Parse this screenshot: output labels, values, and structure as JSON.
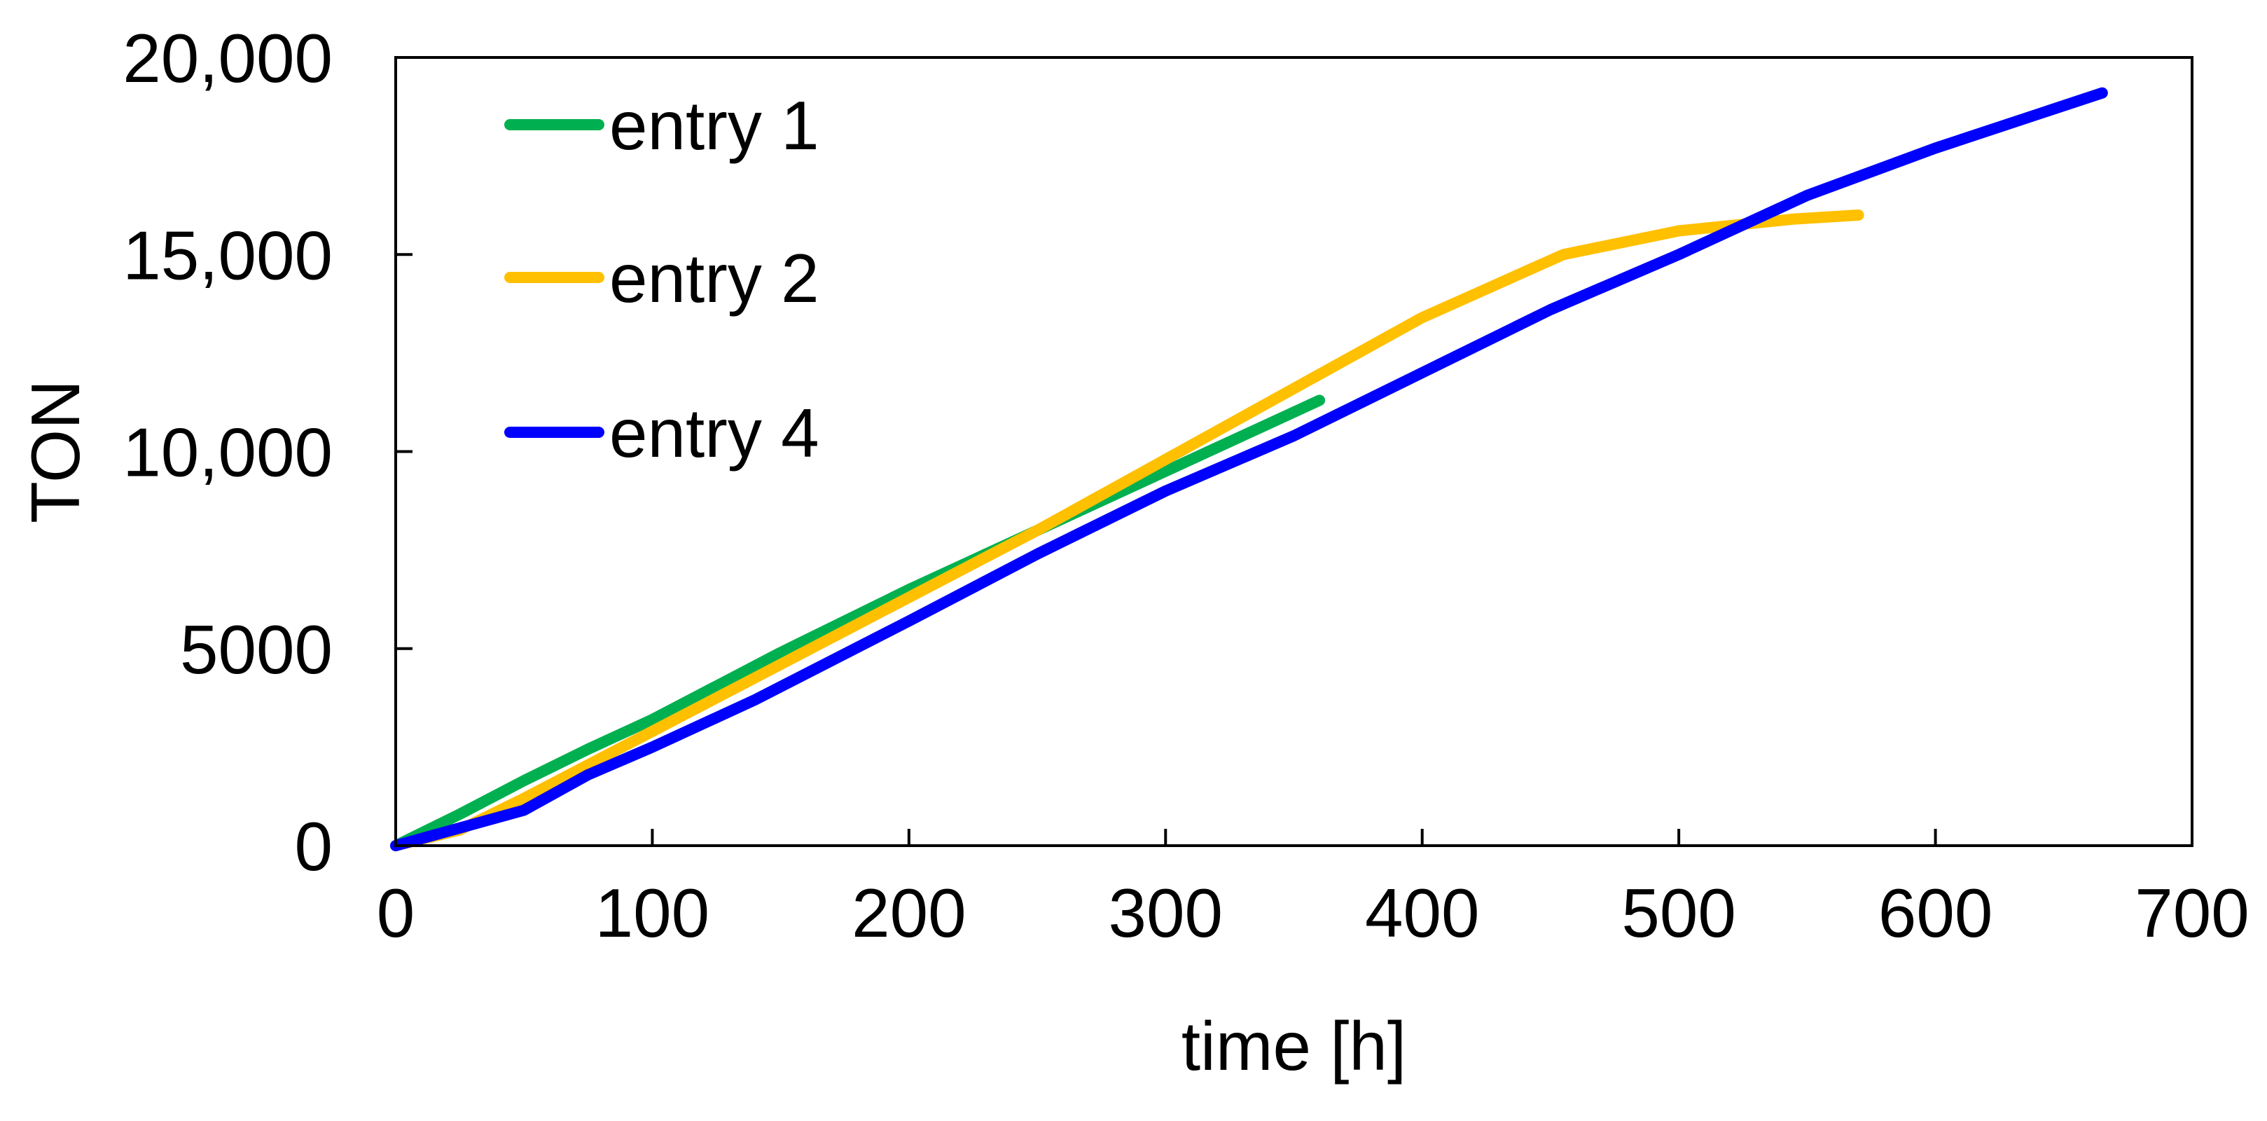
{
  "chart_data": {
    "type": "line",
    "title": "",
    "xlabel": "time [h]",
    "ylabel": "TON",
    "xlim": [
      0,
      700
    ],
    "ylim": [
      0,
      20000
    ],
    "xticks": [
      0,
      100,
      200,
      300,
      400,
      500,
      600,
      700
    ],
    "yticks": [
      0,
      5000,
      10000,
      15000,
      20000
    ],
    "xtick_labels": [
      "0",
      "100",
      "200",
      "300",
      "400",
      "500",
      "600",
      "700"
    ],
    "ytick_labels": [
      "0",
      "5000",
      "10,000",
      "15,000",
      "20,000"
    ],
    "grid": false,
    "legend_position": "top-left",
    "series": [
      {
        "name": "entry 1",
        "color": "#00b050",
        "x": [
          0,
          25,
          50,
          75,
          100,
          150,
          200,
          250,
          300,
          340,
          360
        ],
        "y": [
          0,
          800,
          1650,
          2450,
          3200,
          4900,
          6500,
          8000,
          9500,
          10700,
          11300
        ]
      },
      {
        "name": "entry 2",
        "color": "#ffc000",
        "x": [
          0,
          25,
          50,
          100,
          150,
          200,
          250,
          300,
          350,
          400,
          455,
          500,
          545,
          570
        ],
        "y": [
          0,
          400,
          1200,
          2900,
          4600,
          6300,
          8000,
          9800,
          11600,
          13400,
          15000,
          15600,
          15900,
          16000
        ]
      },
      {
        "name": "entry 4",
        "color": "#0000ff",
        "x": [
          0,
          50,
          75,
          100,
          140,
          200,
          250,
          300,
          350,
          400,
          450,
          500,
          550,
          600,
          665
        ],
        "y": [
          0,
          900,
          1800,
          2500,
          3700,
          5700,
          7400,
          9000,
          10400,
          12000,
          13600,
          15000,
          16500,
          17700,
          19100
        ]
      }
    ]
  }
}
